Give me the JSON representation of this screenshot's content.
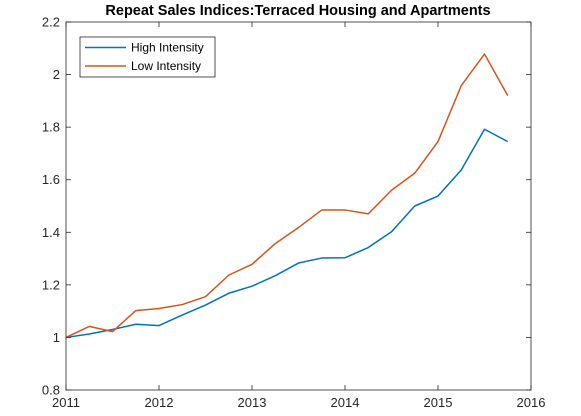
{
  "chart_data": {
    "type": "line",
    "title": "Repeat Sales Indices:Terraced Housing and Apartments",
    "xlabel": "",
    "ylabel": "",
    "xlim": [
      2011,
      2016
    ],
    "ylim": [
      0.8,
      2.2
    ],
    "xticks": [
      2011,
      2012,
      2013,
      2014,
      2015,
      2016
    ],
    "xtick_labels": [
      "2011",
      "2012",
      "2013",
      "2014",
      "2015",
      "2016"
    ],
    "yticks": [
      0.8,
      1,
      1.2,
      1.4,
      1.6,
      1.8,
      2,
      2.2
    ],
    "ytick_labels": [
      "0.8",
      "1",
      "1.2",
      "1.4",
      "1.6",
      "1.8",
      "2",
      "2.2"
    ],
    "grid": false,
    "legend_position": "top-left",
    "x": [
      2011,
      2011.25,
      2011.5,
      2011.75,
      2012,
      2012.25,
      2012.5,
      2012.75,
      2013,
      2013.25,
      2013.5,
      2013.75,
      2014,
      2014.25,
      2014.5,
      2014.75,
      2015,
      2015.25,
      2015.5,
      2015.75
    ],
    "series": [
      {
        "name": "High Intensity",
        "color": "#0072BD",
        "values": [
          1.0,
          1.013,
          1.03,
          1.05,
          1.045,
          1.085,
          1.123,
          1.168,
          1.195,
          1.235,
          1.283,
          1.302,
          1.303,
          1.342,
          1.402,
          1.5,
          1.538,
          1.637,
          1.792,
          1.745
        ]
      },
      {
        "name": "Low Intensity",
        "color": "#D95319",
        "values": [
          1.0,
          1.042,
          1.022,
          1.102,
          1.11,
          1.125,
          1.155,
          1.237,
          1.278,
          1.357,
          1.418,
          1.485,
          1.485,
          1.47,
          1.56,
          1.625,
          1.745,
          1.958,
          2.078,
          1.92
        ]
      }
    ]
  }
}
